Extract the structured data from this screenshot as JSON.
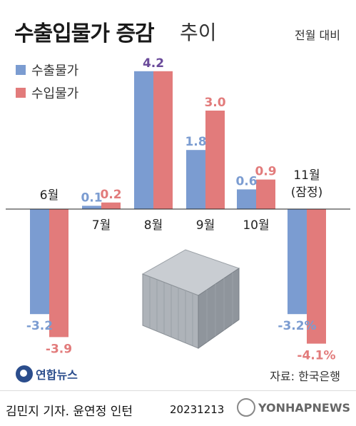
{
  "title": {
    "main": "수출입물가 증감",
    "suffix": "추이"
  },
  "unit_note": "전월 대비",
  "colors": {
    "export": "#7b9cd1",
    "import": "#e27b7b",
    "highlight_value": "#6a4a9a"
  },
  "chart_data": {
    "type": "bar",
    "categories": [
      "6월",
      "7월",
      "8월",
      "9월",
      "10월",
      "11월 (잠정)"
    ],
    "series": [
      {
        "name": "수출물가",
        "values": [
          -3.2,
          0.1,
          4.2,
          1.8,
          0.6,
          -3.2
        ]
      },
      {
        "name": "수입물가",
        "values": [
          -3.9,
          0.2,
          4.2,
          3.0,
          0.9,
          -4.1
        ]
      }
    ],
    "value_labels": {
      "export": [
        "-3.2",
        "0.1",
        "4.2",
        "1.8",
        "0.6",
        "-3.2%"
      ],
      "import": [
        "-3.9",
        "0.2",
        "",
        "3.0",
        "0.9",
        "-4.1%"
      ]
    },
    "category_labels": {
      "m6": "6월",
      "m7": "7월",
      "m8": "8월",
      "m9": "9월",
      "m10": "10월",
      "m11_line1": "11월",
      "m11_line2": "(잠정)"
    },
    "legend": [
      "수출물가",
      "수입물가"
    ],
    "legend_position": "top-left",
    "ylim": [
      -4.5,
      4.8
    ]
  },
  "source": "자료: 한국은행",
  "agency_logo_text": "연합뉴스",
  "credit": "김민지 기자. 윤연정 인턴",
  "date": "20231213",
  "watermark": "YONHAPNEWS"
}
